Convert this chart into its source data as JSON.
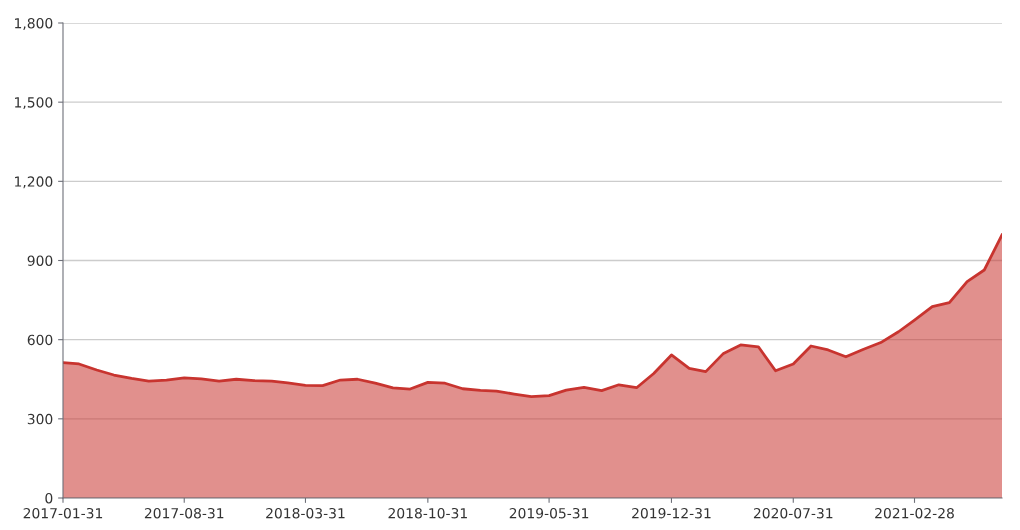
{
  "chart_data": {
    "type": "area",
    "x": [
      "2017-01-31",
      "2017-02-28",
      "2017-03-31",
      "2017-04-30",
      "2017-05-31",
      "2017-06-30",
      "2017-07-31",
      "2017-08-31",
      "2017-09-30",
      "2017-10-31",
      "2017-11-30",
      "2017-12-31",
      "2018-01-31",
      "2018-02-28",
      "2018-03-31",
      "2018-04-30",
      "2018-05-31",
      "2018-06-30",
      "2018-07-31",
      "2018-08-31",
      "2018-09-30",
      "2018-10-31",
      "2018-11-30",
      "2018-12-31",
      "2019-01-31",
      "2019-02-28",
      "2019-03-31",
      "2019-04-30",
      "2019-05-31",
      "2019-06-30",
      "2019-07-31",
      "2019-08-31",
      "2019-09-30",
      "2019-10-31",
      "2019-11-30",
      "2019-12-31",
      "2020-01-31",
      "2020-02-29",
      "2020-03-31",
      "2020-04-30",
      "2020-05-31",
      "2020-06-30",
      "2020-07-31",
      "2020-08-31",
      "2020-09-30",
      "2020-10-31",
      "2020-11-30",
      "2020-12-31",
      "2021-01-31",
      "2021-02-28",
      "2021-03-31",
      "2021-04-30",
      "2021-05-31",
      "2021-06-30",
      "2021-07-31"
    ],
    "series": [
      {
        "color": "#c8342f",
        "values": [
          513,
          508,
          485,
          466,
          453,
          443,
          447,
          455,
          451,
          443,
          450,
          445,
          443,
          436,
          427,
          426,
          447,
          450,
          435,
          417,
          413,
          438,
          435,
          414,
          408,
          405,
          394,
          384,
          388,
          409,
          419,
          407,
          429,
          418,
          472,
          542,
          491,
          479,
          548,
          580,
          573,
          482,
          508,
          576,
          561,
          535,
          563,
          589,
          630,
          674,
          725,
          740,
          820,
          864,
          997
        ]
      }
    ],
    "xlim": [
      "2017-01-31",
      "2021-07-31"
    ],
    "xticks": [
      "2017-01-31",
      "2017-08-31",
      "2018-03-31",
      "2018-10-31",
      "2019-05-31",
      "2019-12-31",
      "2020-07-31",
      "2021-02-28"
    ],
    "ylim": [
      0,
      1800
    ],
    "yticks": [
      0,
      300,
      600,
      900,
      {
        "value": 1200,
        "label": "1,200"
      },
      {
        "value": 1500,
        "label": "1,500"
      },
      {
        "value": 1800,
        "label": "1,800"
      }
    ],
    "grid": "y"
  }
}
